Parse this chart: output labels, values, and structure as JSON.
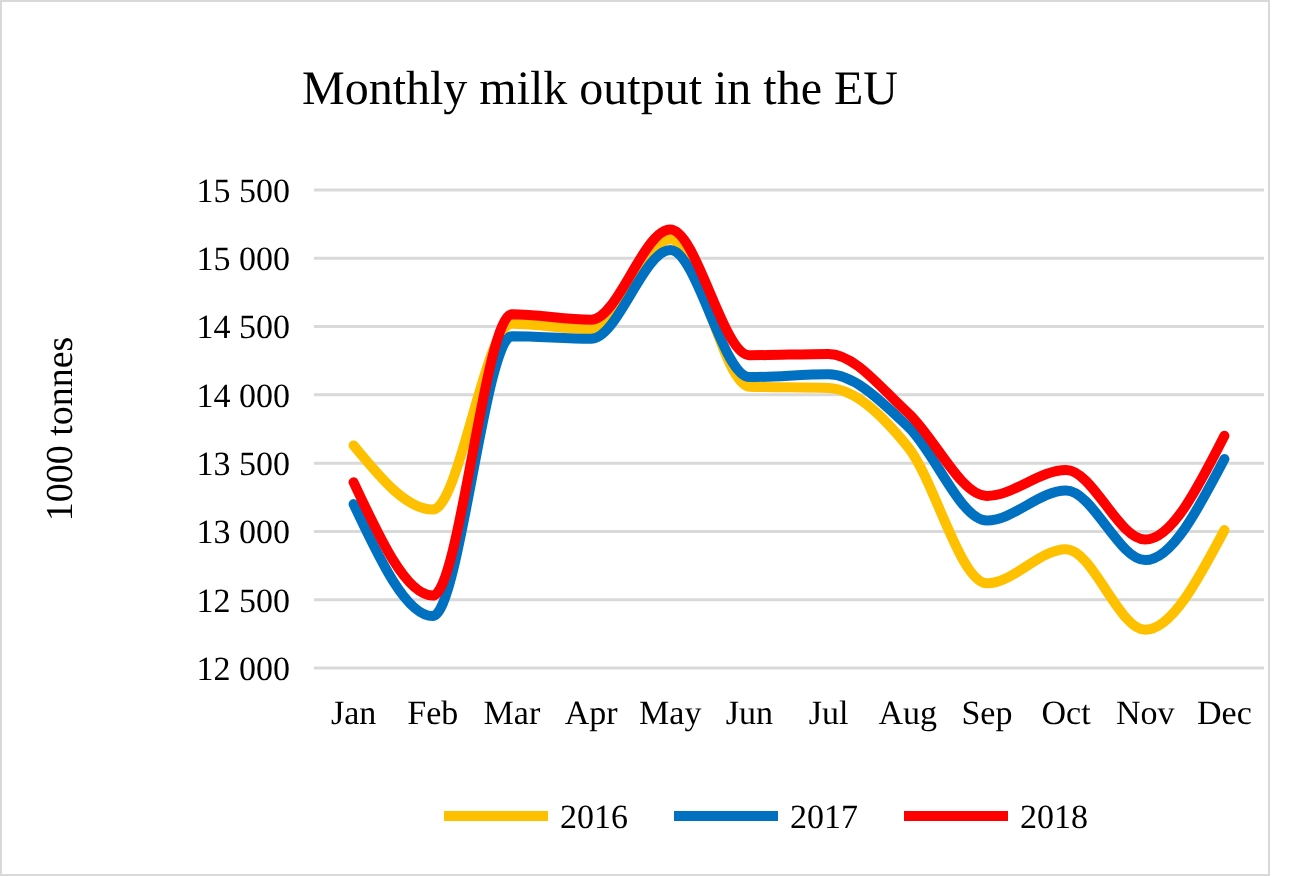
{
  "chart_data": {
    "type": "line",
    "title": "Monthly milk output in the EU",
    "ylabel": "1000 tonnes",
    "categories": [
      "Jan",
      "Feb",
      "Mar",
      "Apr",
      "May",
      "Jun",
      "Jul",
      "Aug",
      "Sep",
      "Oct",
      "Nov",
      "Dec"
    ],
    "series": [
      {
        "name": "2016",
        "color": "#ffc000",
        "values": [
          13630,
          13160,
          14520,
          14480,
          15140,
          14060,
          14050,
          13620,
          12620,
          12870,
          12280,
          13010
        ]
      },
      {
        "name": "2017",
        "color": "#0070c0",
        "values": [
          13200,
          12380,
          14430,
          14410,
          15060,
          14130,
          14150,
          13770,
          13080,
          13300,
          12790,
          13530
        ]
      },
      {
        "name": "2018",
        "color": "#ff0000",
        "values": [
          13360,
          12530,
          14590,
          14550,
          15210,
          14290,
          14300,
          13870,
          13260,
          13450,
          12940,
          13700
        ]
      }
    ],
    "ylim": [
      12000,
      15500
    ],
    "yticks": [
      {
        "value": 12000,
        "label": "12 000"
      },
      {
        "value": 12500,
        "label": "12 500"
      },
      {
        "value": 13000,
        "label": "13 000"
      },
      {
        "value": 13500,
        "label": "13 500"
      },
      {
        "value": 14000,
        "label": "14 000"
      },
      {
        "value": 14500,
        "label": "14 500"
      },
      {
        "value": 15000,
        "label": "15 000"
      },
      {
        "value": 15500,
        "label": "15 500"
      }
    ],
    "grid": "y",
    "legend": "bottom",
    "marker": "none",
    "line_style": "solid"
  }
}
